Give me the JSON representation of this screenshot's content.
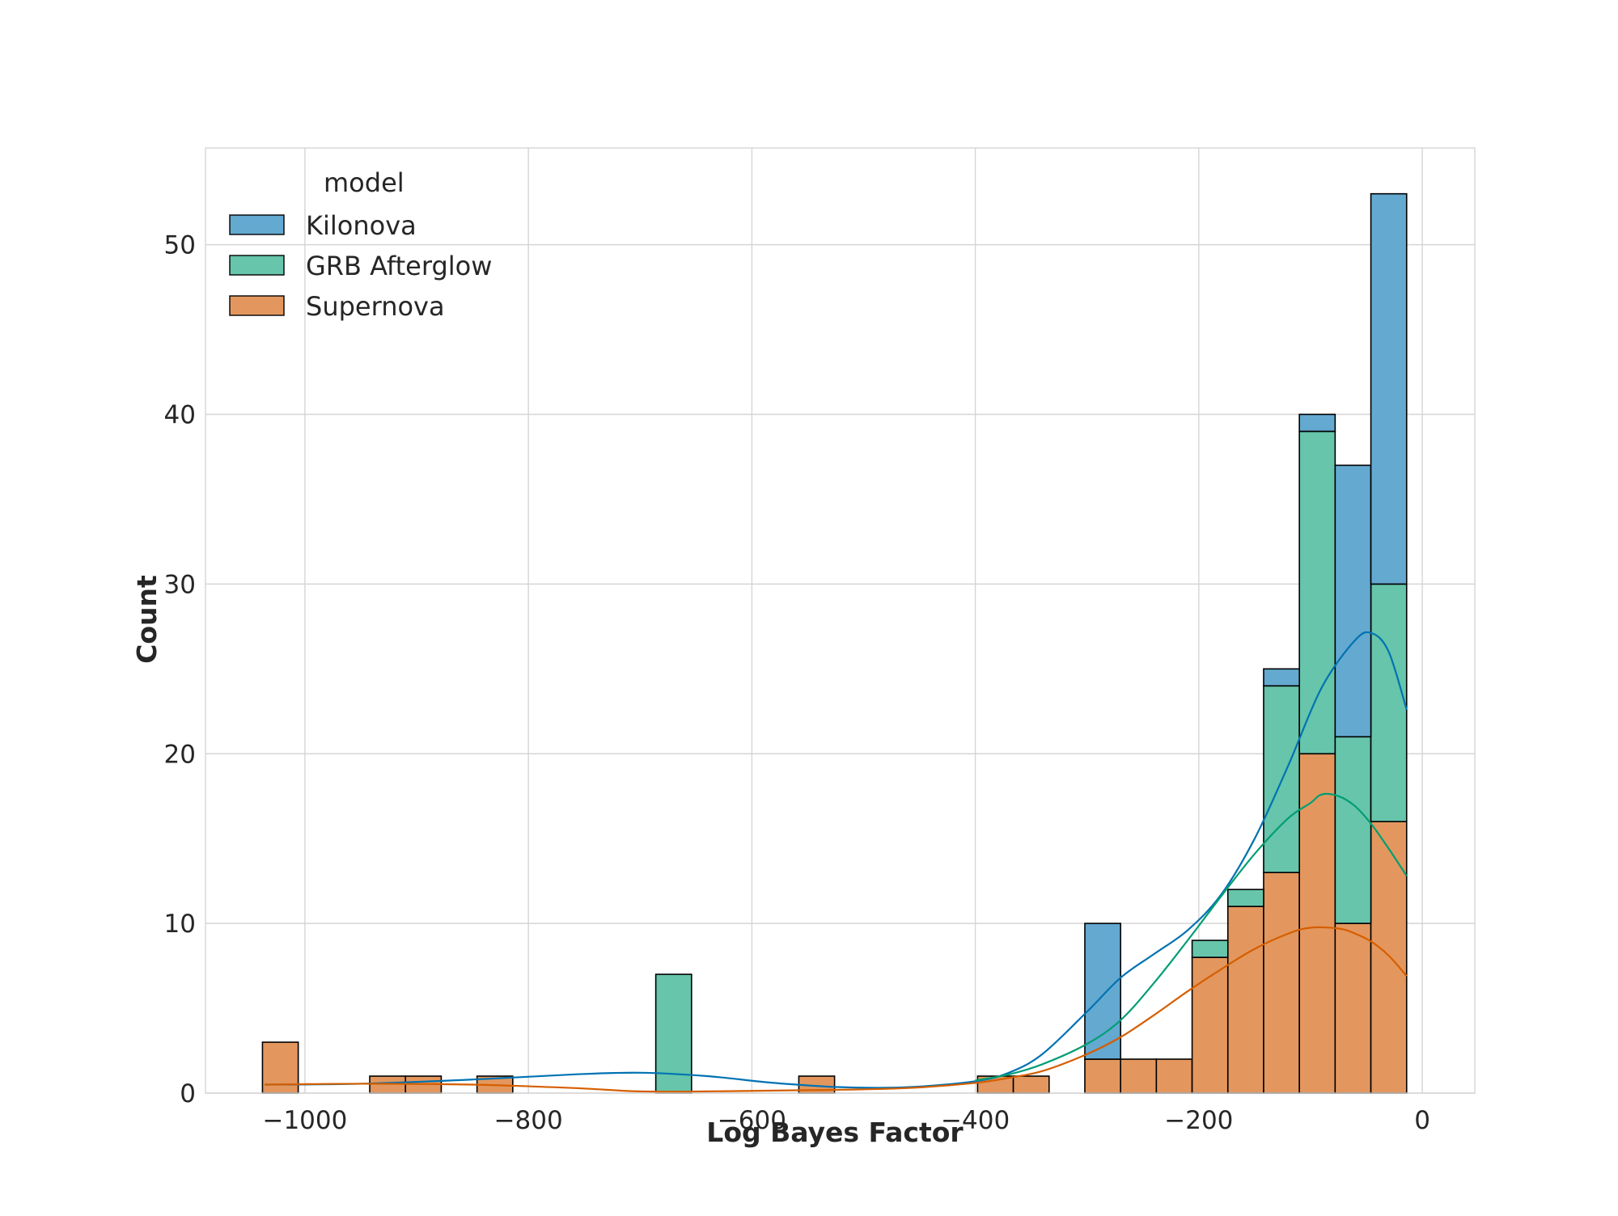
{
  "chart_data": {
    "type": "bar",
    "subtype": "stacked-histogram-with-kde",
    "xlabel": "Log Bayes Factor",
    "ylabel": "Count",
    "xlim": [
      -1089,
      47
    ],
    "ylim": [
      0,
      55.7
    ],
    "xticks": [
      -1000,
      -800,
      -600,
      -400,
      -200,
      0
    ],
    "xtick_labels": [
      "−1000",
      "−800",
      "−600",
      "−400",
      "−200",
      "0"
    ],
    "yticks": [
      0,
      10,
      20,
      30,
      40,
      50
    ],
    "ytick_labels": [
      "0",
      "10",
      "20",
      "30",
      "40",
      "50"
    ],
    "grid": true,
    "legend": {
      "title": "model",
      "placement": "top-left"
    },
    "bin_edges": [
      -1038,
      -1006,
      -974,
      -942,
      -910,
      -878,
      -846,
      -814,
      -782,
      -750,
      -718,
      -686,
      -654,
      -622,
      -590,
      -558,
      -526,
      -494,
      -462,
      -430,
      -398,
      -366,
      -334,
      -302,
      -270,
      -238,
      -206,
      -174,
      -142,
      -110,
      -78,
      -46,
      -14
    ],
    "series": [
      {
        "name": "Supernova",
        "color": "#e3975e",
        "line_color": "#d55e00",
        "values": [
          3,
          0,
          0,
          1,
          1,
          0,
          1,
          0,
          0,
          0,
          0,
          0,
          0,
          0,
          0,
          1,
          0,
          0,
          0,
          0,
          1,
          1,
          0,
          2,
          2,
          2,
          8,
          11,
          13,
          20,
          10,
          16
        ]
      },
      {
        "name": "GRB Afterglow",
        "color": "#66c5aa",
        "line_color": "#009e73",
        "values": [
          0,
          0,
          0,
          0,
          0,
          0,
          0,
          0,
          0,
          0,
          0,
          7,
          0,
          0,
          0,
          0,
          0,
          0,
          0,
          0,
          0,
          0,
          0,
          0,
          0,
          0,
          1,
          1,
          11,
          19,
          11,
          14
        ]
      },
      {
        "name": "Kilonova",
        "color": "#64a9d0",
        "line_color": "#0072b2",
        "values": [
          0,
          0,
          0,
          0,
          0,
          0,
          0,
          0,
          0,
          0,
          0,
          0,
          0,
          0,
          0,
          0,
          0,
          0,
          0,
          0,
          0,
          0,
          0,
          8,
          0,
          0,
          0,
          0,
          1,
          1,
          16,
          23
        ]
      }
    ],
    "kde": [
      {
        "name": "Kilonova",
        "x": [
          -1036,
          -950,
          -850,
          -760,
          -700,
          -640,
          -580,
          -520,
          -460,
          -400,
          -370,
          -340,
          -300,
          -270,
          -240,
          -210,
          -180,
          -150,
          -120,
          -90,
          -60,
          -45,
          -30,
          -14
        ],
        "y": [
          0.5,
          0.55,
          0.8,
          1.1,
          1.2,
          1.0,
          0.6,
          0.35,
          0.35,
          0.7,
          1.2,
          2.3,
          4.8,
          6.8,
          8.2,
          9.6,
          11.7,
          15.0,
          19.3,
          23.9,
          26.7,
          27.1,
          26.0,
          22.6
        ]
      },
      {
        "name": "GRB Afterglow",
        "x": [
          -400,
          -370,
          -340,
          -300,
          -270,
          -240,
          -210,
          -180,
          -150,
          -120,
          -100,
          -90,
          -75,
          -60,
          -45,
          -30,
          -14
        ],
        "y": [
          0.75,
          1.1,
          1.7,
          2.9,
          4.3,
          6.5,
          9.0,
          11.6,
          14.1,
          16.2,
          17.1,
          17.6,
          17.5,
          16.9,
          15.8,
          14.4,
          12.8
        ]
      },
      {
        "name": "Supernova",
        "x": [
          -1036,
          -950,
          -850,
          -760,
          -700,
          -640,
          -580,
          -520,
          -460,
          -400,
          -370,
          -340,
          -300,
          -270,
          -240,
          -210,
          -180,
          -150,
          -120,
          -100,
          -75,
          -60,
          -45,
          -30,
          -14
        ],
        "y": [
          0.5,
          0.55,
          0.5,
          0.3,
          0.1,
          0.1,
          0.15,
          0.2,
          0.3,
          0.6,
          0.9,
          1.3,
          2.3,
          3.3,
          4.6,
          6.0,
          7.3,
          8.5,
          9.4,
          9.75,
          9.7,
          9.4,
          8.9,
          8.1,
          6.9
        ]
      }
    ]
  }
}
